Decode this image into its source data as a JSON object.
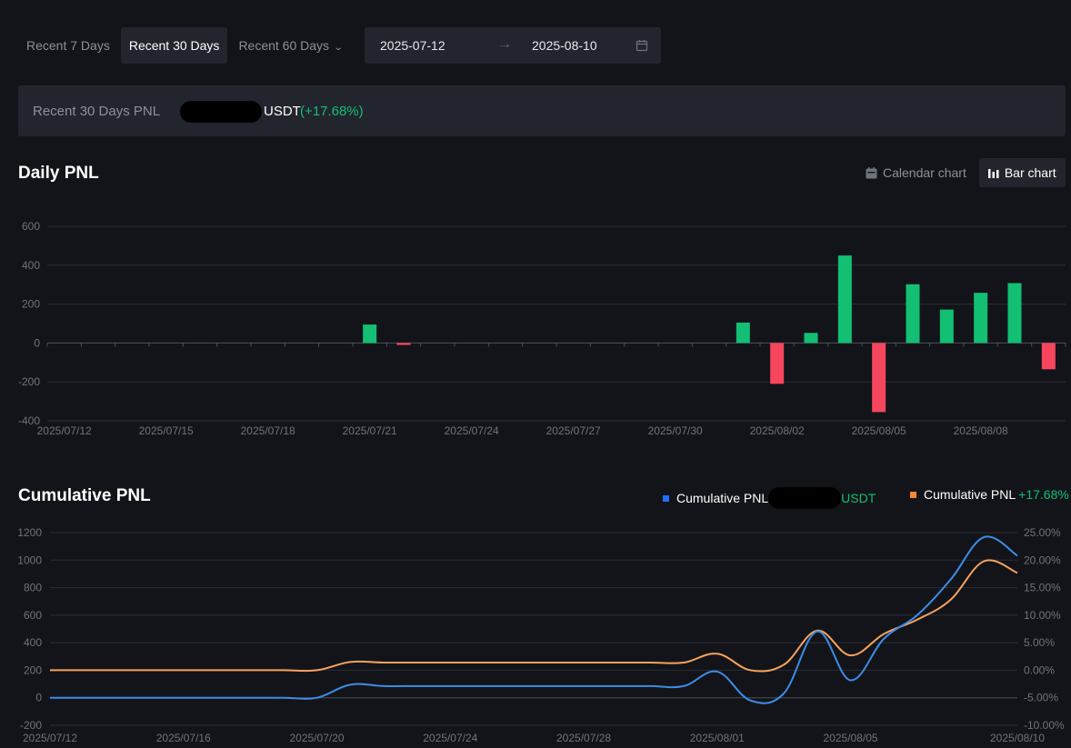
{
  "filters": {
    "recent7": "Recent 7 Days",
    "recent30": "Recent 30 Days",
    "recent60": "Recent 60 Days",
    "start_date": "2025-07-12",
    "end_date": "2025-08-10",
    "arrow": "→"
  },
  "summary": {
    "label": "Recent 30 Days PNL",
    "unit": "USDT",
    "percent": "(+17.68%)"
  },
  "daily": {
    "title": "Daily PNL",
    "calendar_label": "Calendar chart",
    "bar_label": "Bar chart"
  },
  "cumulative": {
    "title": "Cumulative PNL",
    "legend_abs_name": "Cumulative PNL",
    "legend_abs_unit": "USDT",
    "legend_pct_name": "Cumulative PNL",
    "legend_pct_value": "+17.68%"
  },
  "colors": {
    "positive": "#12bf73",
    "negative": "#f6465d",
    "abs_line": "#3c8ce7",
    "pct_line": "#f7a35c",
    "legend_abs_swatch": "#1f6fff",
    "legend_pct_swatch": "#f7862e"
  },
  "chart_data": [
    {
      "type": "bar",
      "title": "Daily PNL",
      "categories": [
        "2025/07/12",
        "2025/07/13",
        "2025/07/14",
        "2025/07/15",
        "2025/07/16",
        "2025/07/17",
        "2025/07/18",
        "2025/07/19",
        "2025/07/20",
        "2025/07/21",
        "2025/07/22",
        "2025/07/23",
        "2025/07/24",
        "2025/07/25",
        "2025/07/26",
        "2025/07/27",
        "2025/07/28",
        "2025/07/29",
        "2025/07/30",
        "2025/07/31",
        "2025/08/01",
        "2025/08/02",
        "2025/08/03",
        "2025/08/04",
        "2025/08/05",
        "2025/08/06",
        "2025/08/07",
        "2025/08/08",
        "2025/08/09",
        "2025/08/10"
      ],
      "values": [
        0,
        0,
        0,
        0,
        0,
        0,
        0,
        0,
        0,
        95,
        -10,
        0,
        0,
        0,
        0,
        0,
        0,
        0,
        0,
        0,
        105,
        -210,
        52,
        450,
        -355,
        302,
        172,
        258,
        308,
        -135
      ],
      "x_tick_labels": [
        "2025/07/12",
        "2025/07/15",
        "2025/07/18",
        "2025/07/21",
        "2025/07/24",
        "2025/07/27",
        "2025/07/30",
        "2025/08/02",
        "2025/08/05",
        "2025/08/08"
      ],
      "y_ticks": [
        -400,
        -200,
        0,
        200,
        400,
        600
      ],
      "ylim": [
        -400,
        600
      ],
      "grid": true
    },
    {
      "type": "line",
      "title": "Cumulative PNL",
      "x": [
        "2025/07/12",
        "2025/07/13",
        "2025/07/14",
        "2025/07/15",
        "2025/07/16",
        "2025/07/17",
        "2025/07/18",
        "2025/07/19",
        "2025/07/20",
        "2025/07/21",
        "2025/07/22",
        "2025/07/23",
        "2025/07/24",
        "2025/07/25",
        "2025/07/26",
        "2025/07/27",
        "2025/07/28",
        "2025/07/29",
        "2025/07/30",
        "2025/07/31",
        "2025/08/01",
        "2025/08/02",
        "2025/08/03",
        "2025/08/04",
        "2025/08/05",
        "2025/08/06",
        "2025/08/07",
        "2025/08/08",
        "2025/08/09",
        "2025/08/10"
      ],
      "series": [
        {
          "name": "Cumulative PNL",
          "axis": "left",
          "unit": "USDT",
          "values": [
            0,
            0,
            0,
            0,
            0,
            0,
            0,
            0,
            0,
            95,
            85,
            85,
            85,
            85,
            85,
            85,
            85,
            85,
            85,
            85,
            190,
            -20,
            32,
            482,
            127,
            429,
            601,
            859,
            1167,
            1032
          ]
        },
        {
          "name": "Cumulative PNL",
          "axis": "right",
          "unit": "%",
          "values": [
            0,
            0,
            0,
            0,
            0,
            0,
            0,
            0,
            0,
            1.5,
            1.4,
            1.4,
            1.4,
            1.4,
            1.4,
            1.4,
            1.4,
            1.4,
            1.4,
            1.4,
            3.0,
            0,
            1.0,
            7.2,
            2.7,
            6.6,
            9.2,
            12.8,
            19.8,
            17.68
          ]
        }
      ],
      "x_tick_labels": [
        "2025/07/12",
        "2025/07/16",
        "2025/07/20",
        "2025/07/24",
        "2025/07/28",
        "2025/08/01",
        "2025/08/05",
        "2025/08/10"
      ],
      "y_left_ticks": [
        -200,
        0,
        200,
        400,
        600,
        800,
        1000,
        1200
      ],
      "y_right_ticks": [
        "-10.00%",
        "-5.00%",
        "0.00%",
        "5.00%",
        "10.00%",
        "15.00%",
        "20.00%",
        "25.00%"
      ],
      "ylim_left": [
        -200,
        1200
      ],
      "ylim_right": [
        -10,
        25
      ],
      "grid": true,
      "legend": "top-right"
    }
  ]
}
